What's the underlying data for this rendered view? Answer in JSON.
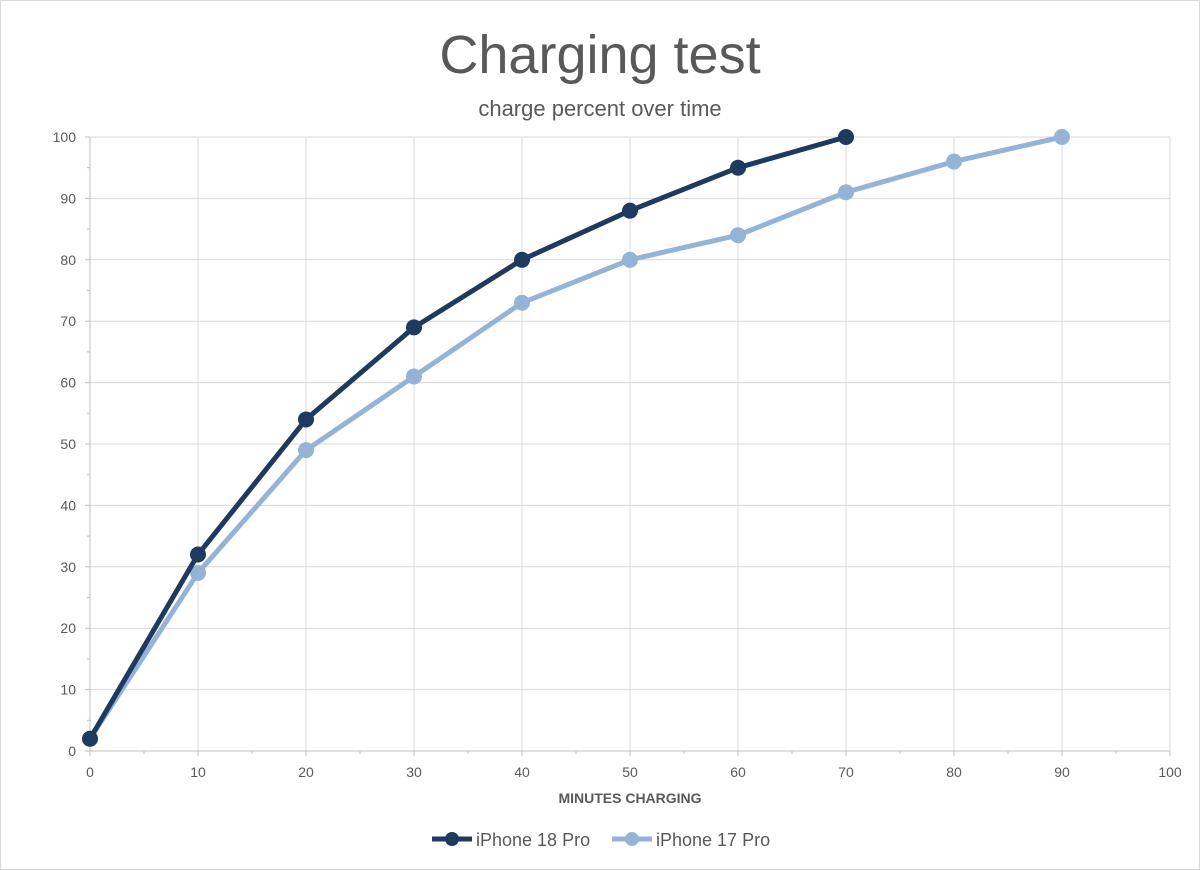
{
  "chart_data": {
    "type": "line",
    "title": "Charging test",
    "subtitle": "charge percent over time",
    "xlabel": "MINUTES CHARGING",
    "ylabel": "",
    "xlim": [
      0,
      100
    ],
    "ylim": [
      0,
      100
    ],
    "x_ticks": [
      0,
      10,
      20,
      30,
      40,
      50,
      60,
      70,
      80,
      90,
      100
    ],
    "y_ticks": [
      0,
      10,
      20,
      30,
      40,
      50,
      60,
      70,
      80,
      90,
      100
    ],
    "grid": true,
    "legend_position": "bottom",
    "series": [
      {
        "name": "iPhone 18 Pro",
        "color": "#1f3a5f",
        "x": [
          0,
          10,
          20,
          30,
          40,
          50,
          60,
          70
        ],
        "y": [
          2,
          32,
          54,
          69,
          80,
          88,
          95,
          100
        ]
      },
      {
        "name": "iPhone 17 Pro",
        "color": "#95b3d7",
        "x": [
          0,
          10,
          20,
          30,
          40,
          50,
          60,
          70,
          80,
          90
        ],
        "y": [
          2,
          29,
          49,
          61,
          73,
          80,
          84,
          91,
          96,
          100
        ]
      }
    ]
  }
}
